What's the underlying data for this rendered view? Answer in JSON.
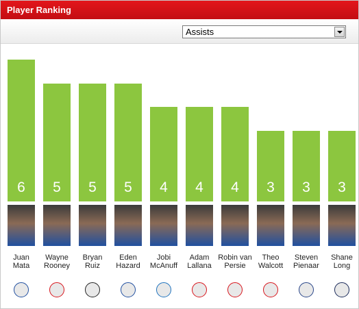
{
  "header": {
    "title": "Player Ranking"
  },
  "selector": {
    "selected": "Assists"
  },
  "chart_data": {
    "type": "bar",
    "color": "#8cc63f",
    "categories": [
      "Juan Mata",
      "Wayne Rooney",
      "Bryan Ruiz",
      "Eden Hazard",
      "Jobi McAnuff",
      "Adam Lallana",
      "Robin van Persie",
      "Theo Walcott",
      "Steven Pienaar",
      "Shane Long"
    ],
    "values": [
      6,
      5,
      5,
      5,
      4,
      4,
      4,
      3,
      3,
      3
    ]
  }
}
